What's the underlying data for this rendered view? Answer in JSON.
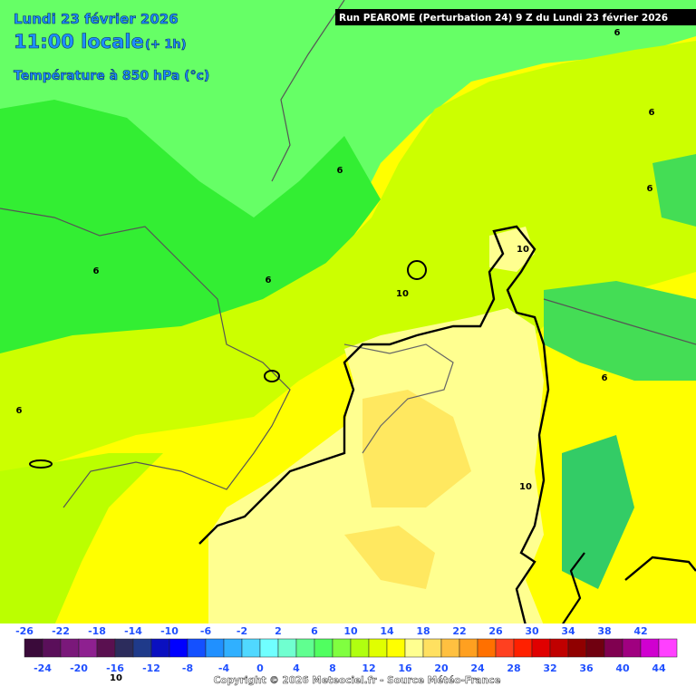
{
  "header": {
    "date": "Lundi 23 février 2026",
    "time": "11:00 locale",
    "offset": "(+ 1h)",
    "variable": "Température à 850 hPa (°c)"
  },
  "run_info": "Run PEAROME (Perturbation 24) 9 Z du Lundi 23 février 2026",
  "contour_labels": [
    6,
    6,
    6,
    6,
    6,
    6,
    6,
    6,
    10,
    10,
    10,
    10
  ],
  "colorbar": {
    "top_labels": [
      -26,
      -22,
      -18,
      -14,
      -10,
      -6,
      -2,
      2,
      6,
      10,
      14,
      18,
      22,
      26,
      30,
      34,
      38,
      42
    ],
    "bottom_labels": [
      -24,
      -20,
      -16,
      -12,
      -8,
      -4,
      0,
      4,
      8,
      12,
      16,
      20,
      24,
      28,
      32,
      36,
      40,
      44
    ],
    "colors": [
      "#3a0a3a",
      "#5a0f5a",
      "#7a187a",
      "#8e2090",
      "#5a1050",
      "#2c2c5c",
      "#1f3a8a",
      "#0a10c0",
      "#0000ff",
      "#1450ff",
      "#2090ff",
      "#30b0ff",
      "#50d8ff",
      "#70ffff",
      "#70ffd0",
      "#60ff90",
      "#50ff60",
      "#80ff40",
      "#b0ff10",
      "#e0ff00",
      "#ffff00",
      "#ffff90",
      "#ffe060",
      "#ffc040",
      "#ffa020",
      "#ff7000",
      "#ff4020",
      "#ff2000",
      "#e00000",
      "#c00000",
      "#900000",
      "#700010",
      "#800050",
      "#a00080",
      "#d000d0",
      "#ff40ff"
    ]
  },
  "copyright": "Copyright © 2026 Meteociel.fr - Source Météo-France"
}
